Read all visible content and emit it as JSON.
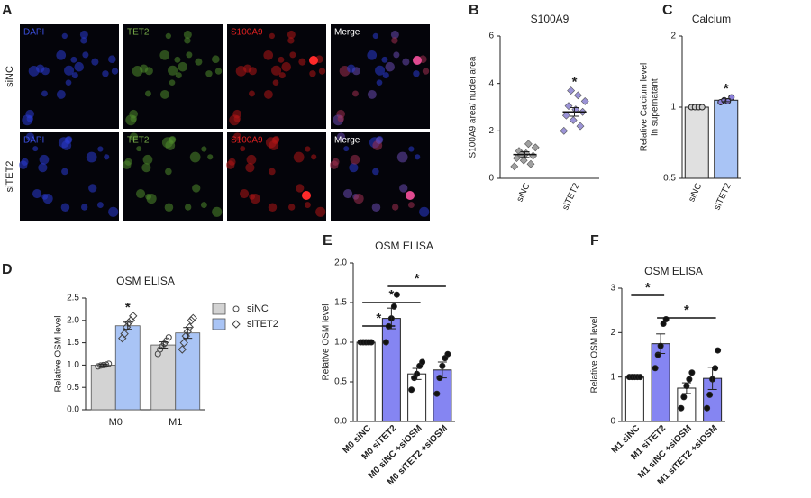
{
  "image_panel": {
    "panel": "A",
    "row_labels": [
      "siNC",
      "siTET2"
    ],
    "channels": [
      "DAPI",
      "TET2",
      "S100A9",
      "Merge"
    ]
  },
  "chart_data": [
    {
      "type": "dot",
      "panel": "B",
      "title": "S100A9",
      "ylabel": "S100A9 area/ nuclei area",
      "categories": [
        "siNC",
        "siTET2"
      ],
      "ylim": [
        0,
        6
      ],
      "yticks": [
        0,
        2,
        4,
        6
      ],
      "color": "#a0a0a0",
      "colors": [
        "#a0a0a0",
        "#9b93d6"
      ],
      "points": [
        [
          0.5,
          0.6,
          0.75,
          0.85,
          0.95,
          1.05,
          1.15,
          1.3,
          1.45,
          1.0
        ],
        [
          2.0,
          2.2,
          2.45,
          2.65,
          2.8,
          2.9,
          3.05,
          3.25,
          3.5,
          3.7
        ]
      ],
      "means": [
        1.0,
        2.8
      ],
      "sems": [
        0.12,
        0.18
      ],
      "annotations": [
        {
          "index": 1,
          "label": "*"
        }
      ]
    },
    {
      "type": "bar",
      "panel": "C",
      "title": "Calcium",
      "ylabel": [
        "Relative Calcium level",
        "in supernatant"
      ],
      "categories": [
        "siNC",
        "siTET2"
      ],
      "log": true,
      "ylim": [
        0.5,
        2
      ],
      "yticks": [
        0.5,
        1,
        2
      ],
      "colors": [
        "#e0e0e0",
        "#a9c4f5"
      ],
      "values": [
        1.0,
        1.07
      ],
      "errors": [
        0,
        0.015
      ],
      "points": [
        [
          1,
          1,
          1,
          1
        ],
        [
          1.05,
          1.07,
          1.06,
          1.1
        ]
      ],
      "annotations": [
        {
          "index": 1,
          "label": "*"
        }
      ]
    },
    {
      "type": "grouped_bar",
      "panel": "D",
      "title": "OSM ELISA",
      "ylabel": "Relative OSM level",
      "categories": [
        "M0",
        "M1"
      ],
      "ylim": [
        0,
        2.5
      ],
      "yticks": [
        {
          "value": 0,
          "label": "0.0"
        },
        0.5,
        {
          "value": 1,
          "label": "1.0"
        },
        1.5,
        {
          "value": 2,
          "label": "2.0"
        },
        2.5
      ],
      "series": [
        {
          "name": "siNC",
          "color": "#d3d3d3",
          "marker": "circle",
          "values": [
            1.0,
            1.45
          ],
          "errors": [
            0.02,
            0.07
          ],
          "points": [
            [
              0.97,
              0.99,
              1.0,
              1.01,
              1.03
            ],
            [
              1.25,
              1.35,
              1.42,
              1.48,
              1.55,
              1.62
            ]
          ]
        },
        {
          "name": "siTET2",
          "color": "#a9c4f5",
          "marker": "diamond",
          "values": [
            1.88,
            1.72
          ],
          "errors": [
            0.08,
            0.12
          ],
          "points": [
            [
              1.6,
              1.7,
              1.85,
              1.95,
              2.0,
              2.1
            ],
            [
              1.35,
              1.5,
              1.65,
              1.75,
              1.85,
              2.0,
              2.05
            ]
          ]
        }
      ],
      "annotations": [
        {
          "index": 0,
          "series": 1,
          "label": "*"
        }
      ]
    },
    {
      "type": "bar",
      "panel": "E",
      "title": "OSM ELISA",
      "ylabel": "Relative OSM level",
      "categories": [
        "M0 siNC",
        "M0 siTET2",
        "M0 siNC +siOSM",
        "M0 siTET2 +siOSM"
      ],
      "ylim": [
        0,
        2
      ],
      "yticks": [
        {
          "value": 0,
          "label": "0.0"
        },
        0.5,
        {
          "value": 1,
          "label": "1.0"
        },
        1.5,
        {
          "value": 2,
          "label": "2.0"
        }
      ],
      "colors": [
        "#ffffff",
        "#8585f2",
        "#ffffff",
        "#8585f2"
      ],
      "values": [
        1.0,
        1.3,
        0.6,
        0.65
      ],
      "errors": [
        0,
        0.13,
        0.07,
        0.1
      ],
      "points": [
        [
          1,
          1,
          1,
          1,
          1
        ],
        [
          1.0,
          1.2,
          1.3,
          1.45,
          1.6
        ],
        [
          0.4,
          0.55,
          0.6,
          0.7,
          0.75
        ],
        [
          0.35,
          0.55,
          0.7,
          0.8,
          0.85
        ]
      ],
      "comparisons": [
        {
          "pair": [
            0,
            1
          ],
          "label": "*"
        },
        {
          "pair": [
            0,
            2
          ],
          "label": "*"
        },
        {
          "pair": [
            1,
            3
          ],
          "label": "*"
        }
      ]
    },
    {
      "type": "bar",
      "panel": "F",
      "title": "OSM ELISA",
      "ylabel": "Relative OSM level",
      "categories": [
        "M1 siNC",
        "M1 siTET2",
        "M1 siNC +siOSM",
        "M1 siTET2 +siOSM"
      ],
      "ylim": [
        0,
        3
      ],
      "yticks": [
        0,
        1,
        2,
        3
      ],
      "colors": [
        "#ffffff",
        "#8585f2",
        "#ffffff",
        "#8585f2"
      ],
      "values": [
        1.0,
        1.75,
        0.75,
        0.97
      ],
      "errors": [
        0,
        0.22,
        0.12,
        0.25
      ],
      "points": [
        [
          1,
          1,
          1,
          1,
          1
        ],
        [
          1.2,
          1.5,
          1.7,
          2.2,
          2.3
        ],
        [
          0.3,
          0.55,
          0.8,
          0.95,
          1.1
        ],
        [
          0.3,
          0.6,
          0.95,
          1.2,
          1.6
        ]
      ],
      "comparisons": [
        {
          "pair": [
            0,
            1
          ],
          "label": "*"
        },
        {
          "pair": [
            1,
            3
          ],
          "label": "*"
        }
      ]
    }
  ]
}
